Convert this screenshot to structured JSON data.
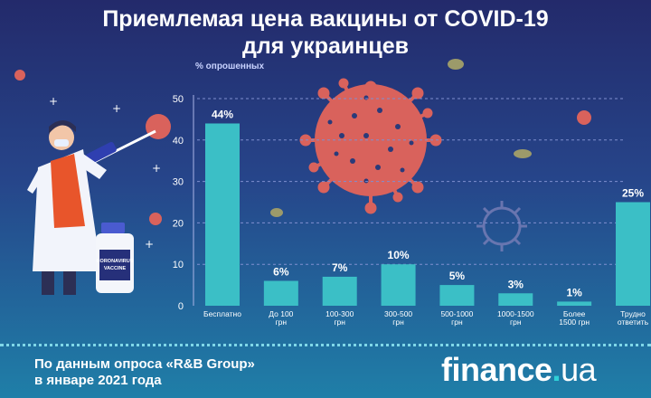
{
  "title_lines": [
    "Приемлемая цена вакцины от COVID-19",
    "для украинцев"
  ],
  "chart_data": {
    "type": "bar",
    "ylabel": "% опрошенных",
    "ylim": [
      0,
      50
    ],
    "yticks": [
      0,
      10,
      20,
      30,
      40,
      50
    ],
    "grid": "dashed horizontal",
    "categories": [
      [
        "Бесплатно"
      ],
      [
        "До 100",
        "грн"
      ],
      [
        "100-300",
        "грн"
      ],
      [
        "300-500",
        "грн"
      ],
      [
        "500-1000",
        "грн"
      ],
      [
        "1000-1500",
        "грн"
      ],
      [
        "Более",
        "1500 грн"
      ],
      [
        "Трудно",
        "ответить"
      ]
    ],
    "values": [
      44,
      6,
      7,
      10,
      5,
      3,
      1,
      25
    ],
    "value_labels": [
      "44%",
      "6%",
      "7%",
      "10%",
      "5%",
      "3%",
      "1%",
      "25%"
    ]
  },
  "illustration": {
    "vial_label_lines": [
      "CORONAVIRUS",
      "VACCINE"
    ]
  },
  "footer": {
    "source_lines": [
      "По данным опроса «R&B Group»",
      "в январе 2021 года"
    ],
    "brand": {
      "main": "finance",
      "dot": ".",
      "tld": "ua"
    }
  },
  "colors": {
    "bar": "#3bbfc6",
    "virus": "#d9625c",
    "text": "#ffffff",
    "grid": "#7f8fd0"
  }
}
